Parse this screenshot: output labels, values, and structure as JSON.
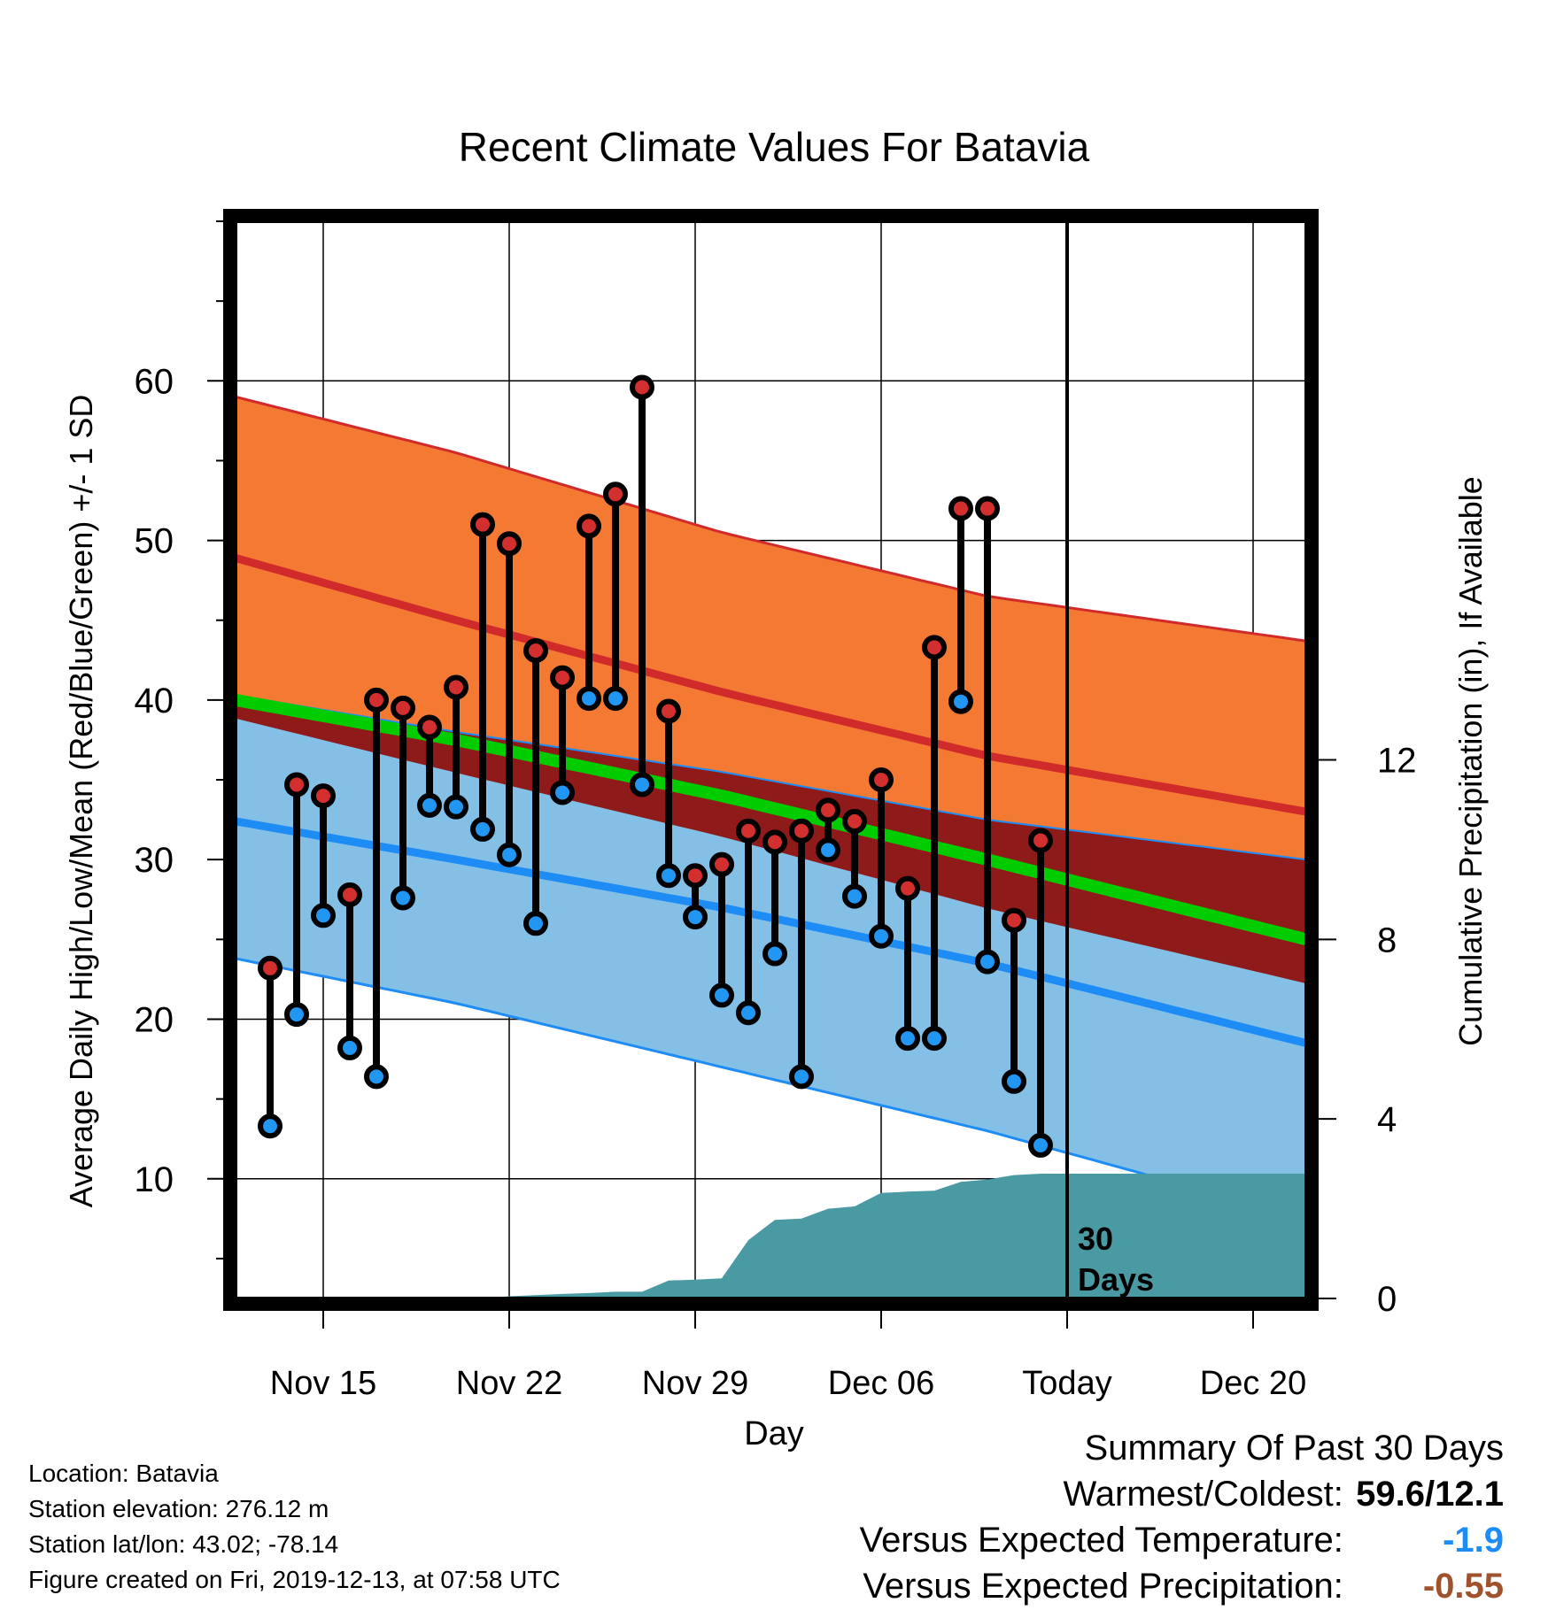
{
  "chart_data": {
    "type": "line",
    "title": "Recent Climate Values For Batavia",
    "xlabel": "Day",
    "ylabel": "Average Daily High/Low/Mean (Red/Blue/Green) +/- 1 SD",
    "y2label": "Cumulative Precipitation (in), If Available",
    "x_tick_labels": [
      "Nov 15",
      "Nov 22",
      "Nov 29",
      "Dec 06",
      "Today",
      "Dec 20"
    ],
    "x_tick_days": [
      15,
      22,
      29,
      36,
      43,
      50
    ],
    "xlim": [
      11.7,
      52
    ],
    "ylim": [
      2.5,
      70
    ],
    "y_ticks": [
      10,
      20,
      30,
      40,
      50,
      60
    ],
    "y2lim": [
      0,
      24
    ],
    "y2_ticks": [
      0,
      4,
      8,
      12
    ],
    "today_day": 43,
    "today_annotation": "30 Days",
    "normals": {
      "day": [
        11.7,
        20,
        30,
        40,
        52
      ],
      "high_mean": [
        48.9,
        45.0,
        40.5,
        36.5,
        33.0
      ],
      "high_plus_sd": [
        59.0,
        55.5,
        50.5,
        46.5,
        43.7
      ],
      "high_minus_sd": [
        40.3,
        38.0,
        35.5,
        32.5,
        30.0
      ],
      "low_mean": [
        32.4,
        30.0,
        27.0,
        23.5,
        18.5
      ],
      "low_plus_sd": [
        38.9,
        35.5,
        31.5,
        27.0,
        22.3
      ],
      "low_minus_sd": [
        23.8,
        21.0,
        17.0,
        13.0,
        7.5
      ],
      "mean": [
        40.0,
        37.5,
        34.0,
        30.0,
        25.0
      ]
    },
    "series": [
      {
        "name": "High",
        "day": [
          13,
          14,
          15,
          16,
          17,
          18,
          19,
          20,
          21,
          22,
          23,
          24,
          25,
          26,
          27,
          28,
          29,
          30,
          31,
          32,
          33,
          34,
          35,
          36,
          37,
          38,
          39,
          40,
          41,
          42
        ],
        "values": [
          23.2,
          34.7,
          34.0,
          27.8,
          40.0,
          39.5,
          38.3,
          40.8,
          51.0,
          49.8,
          43.1,
          41.4,
          50.9,
          52.9,
          59.6,
          39.3,
          29.0,
          29.7,
          31.8,
          31.1,
          31.8,
          33.1,
          32.4,
          35.0,
          28.2,
          43.3,
          52.0,
          52.0,
          26.2,
          31.2
        ]
      },
      {
        "name": "Low",
        "day": [
          13,
          14,
          15,
          16,
          17,
          18,
          19,
          20,
          21,
          22,
          23,
          24,
          25,
          26,
          27,
          28,
          29,
          30,
          31,
          32,
          33,
          34,
          35,
          36,
          37,
          38,
          39,
          40,
          41,
          42
        ],
        "values": [
          13.3,
          20.3,
          26.5,
          18.2,
          16.4,
          27.6,
          33.4,
          33.3,
          31.9,
          30.3,
          26.0,
          34.2,
          40.1,
          40.1,
          34.7,
          29.0,
          26.4,
          21.5,
          20.4,
          24.1,
          16.4,
          30.6,
          27.7,
          25.2,
          18.8,
          18.8,
          39.9,
          23.6,
          16.1,
          12.1
        ]
      },
      {
        "name": "Cumulative Precipitation",
        "day": [
          11.7,
          21,
          22,
          24,
          25,
          26,
          27,
          28,
          29,
          30,
          31,
          32,
          33,
          34,
          35,
          36,
          37,
          38,
          39,
          40,
          41,
          42,
          52
        ],
        "values": [
          0,
          0,
          0.05,
          0.1,
          0.12,
          0.15,
          0.15,
          0.4,
          0.42,
          0.45,
          1.3,
          1.75,
          1.78,
          2.0,
          2.05,
          2.35,
          2.38,
          2.4,
          2.6,
          2.65,
          2.75,
          2.78,
          2.78
        ]
      }
    ],
    "colors": {
      "high_band": "#f47a33",
      "high_line": "#d12a2a",
      "low_band": "#84bfe6",
      "low_line": "#1e8cf5",
      "overlap": "#8e1a1a",
      "mean_line": "#00cc00",
      "precip": "#4a9aa4",
      "high_marker": "#d32f2f",
      "low_marker": "#2196f3"
    }
  },
  "info": {
    "location": "Location: Batavia",
    "elevation": "Station elevation: 276.12 m",
    "latlon": "Station lat/lon: 43.02; -78.14",
    "created": "Figure created on Fri, 2019-12-13, at 07:58 UTC"
  },
  "summary": {
    "title": "Summary Of Past 30 Days",
    "warmest_label": "Warmest/Coldest:",
    "warmest_value": "59.6/12.1",
    "temp_label": "Versus Expected Temperature:",
    "temp_value": "-1.9",
    "temp_color": "#1e8cf5",
    "precip_label": "Versus Expected Precipitation:",
    "precip_value": "-0.55",
    "precip_color": "#a0522d"
  }
}
